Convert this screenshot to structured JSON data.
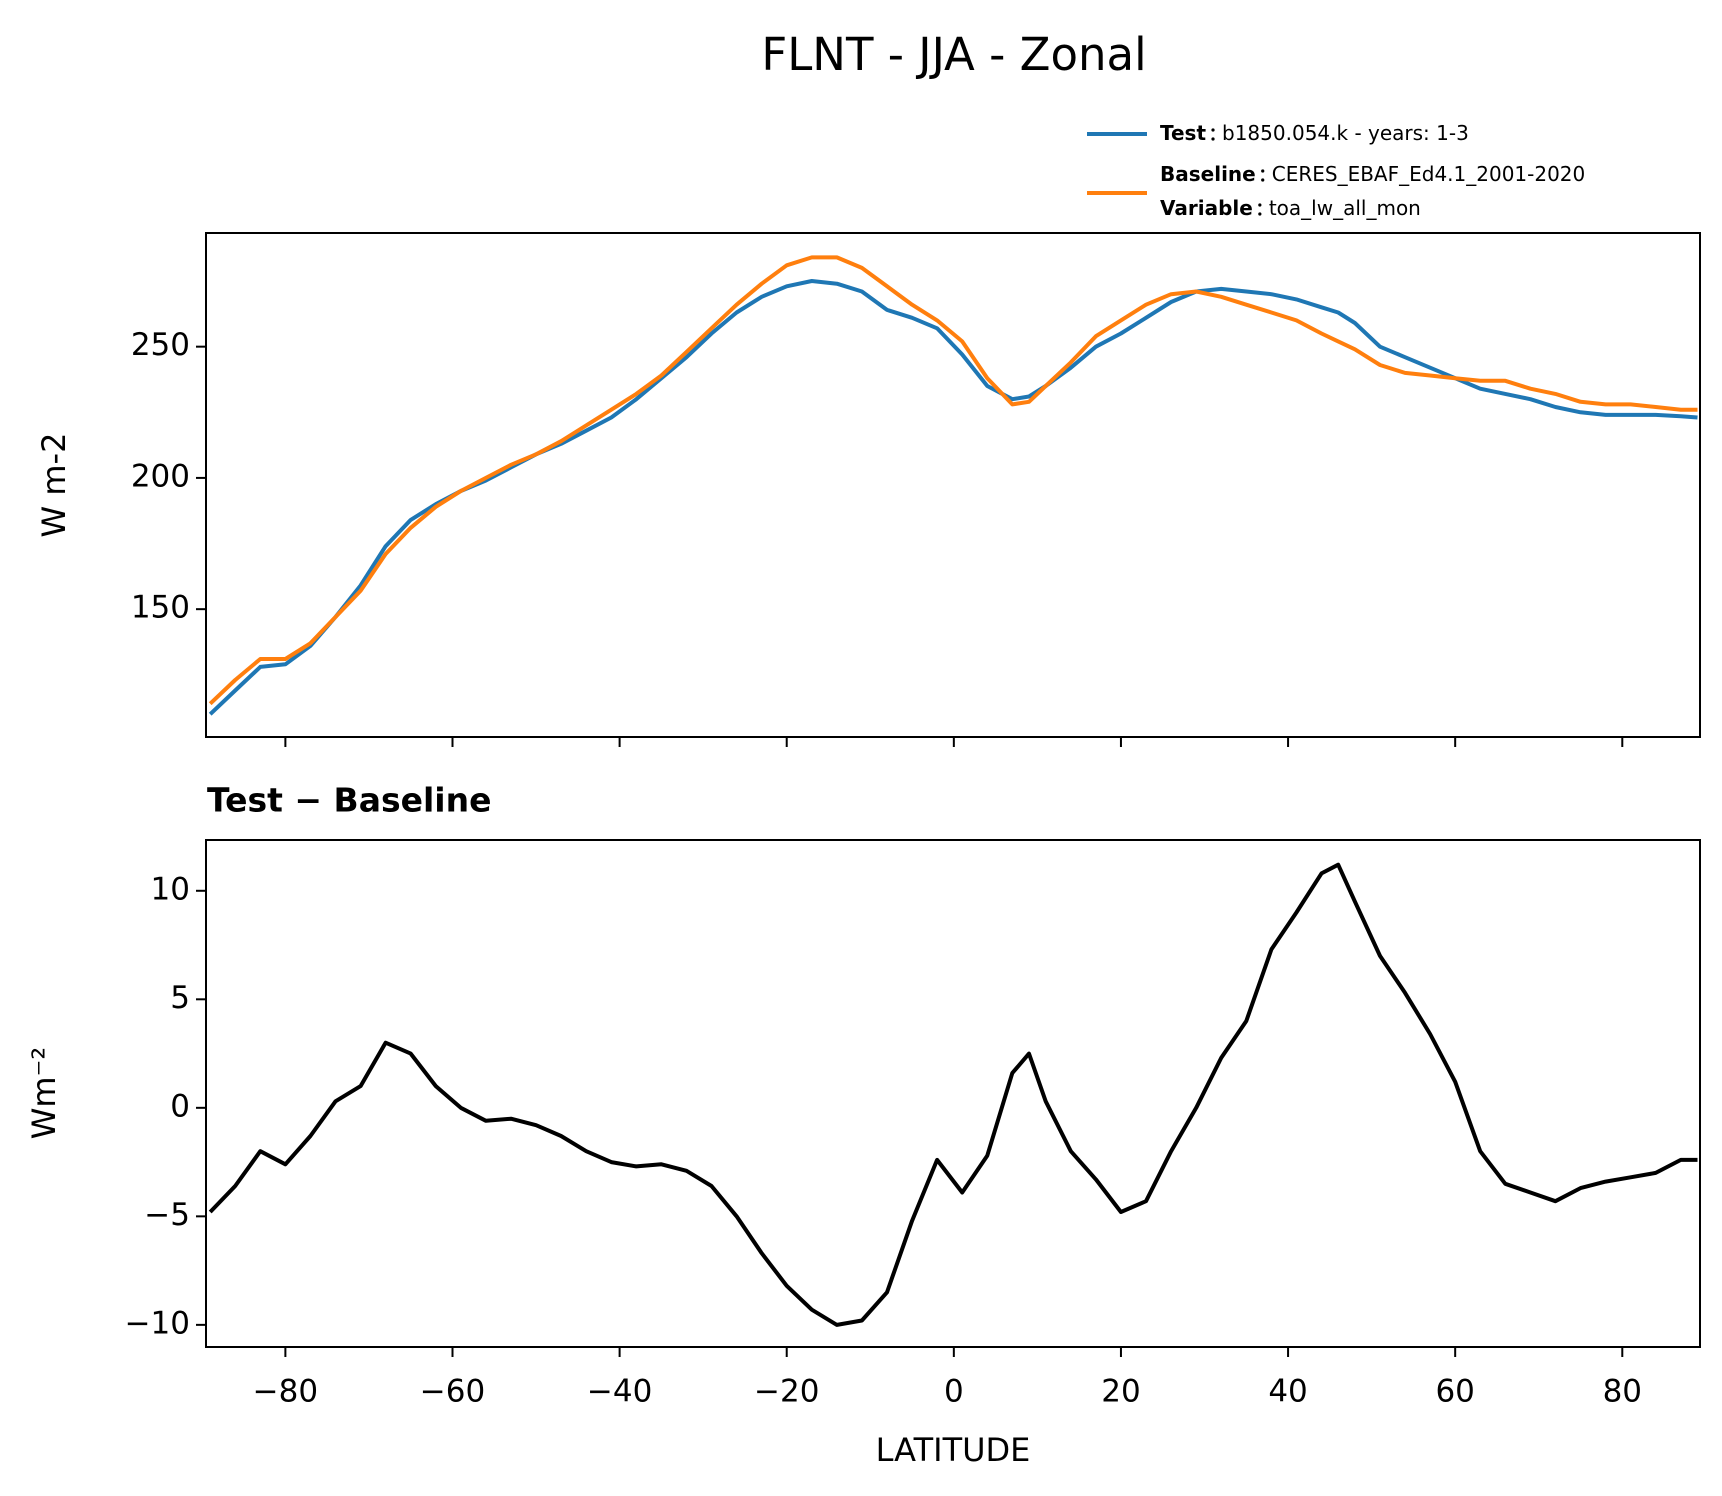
{
  "chart_data": [
    {
      "type": "line",
      "title": "FLNT - JJA - Zonal",
      "ylabel": "W m-2",
      "x": [
        -89,
        -86,
        -83,
        -80,
        -77,
        -74,
        -71,
        -68,
        -65,
        -62,
        -59,
        -56,
        -53,
        -50,
        -47,
        -44,
        -41,
        -38,
        -35,
        -32,
        -29,
        -26,
        -23,
        -20,
        -17,
        -14,
        -11,
        -8,
        -5,
        -2,
        1,
        4,
        7,
        9,
        11,
        14,
        17,
        20,
        23,
        26,
        29,
        32,
        35,
        38,
        41,
        44,
        46,
        48,
        51,
        54,
        57,
        60,
        63,
        66,
        69,
        72,
        75,
        78,
        81,
        84,
        87,
        89
      ],
      "series": [
        {
          "name": "Test",
          "description": "b1850.054.k - years: 1-3",
          "color": "#1f77b4",
          "values": [
            110,
            119,
            128,
            129,
            136,
            147,
            159,
            174,
            184,
            190,
            195,
            199,
            204,
            209,
            213,
            218,
            223,
            230,
            238,
            246,
            255,
            263,
            269,
            273,
            275,
            274,
            271,
            264,
            261,
            257,
            247,
            235,
            230,
            231,
            235,
            242,
            250,
            255,
            261,
            267,
            271,
            272,
            271,
            270,
            268,
            265,
            263,
            259,
            250,
            246,
            242,
            238,
            234,
            232,
            230,
            227,
            225,
            224,
            224,
            224,
            223.5,
            223
          ]
        },
        {
          "name": "Baseline",
          "description": "CERES_EBAF_Ed4.1_2001-2020",
          "color": "#ff7f0e",
          "values": [
            114,
            123,
            131,
            131,
            137,
            147,
            157,
            171,
            181,
            189,
            195,
            200,
            205,
            209,
            214,
            220,
            226,
            232,
            239,
            248,
            257,
            266,
            274,
            281,
            284,
            284,
            280,
            273,
            266,
            260,
            252,
            238,
            228,
            229,
            235,
            244,
            254,
            260,
            266,
            270,
            271,
            269,
            266,
            263,
            260,
            255,
            252,
            249,
            243,
            240,
            239,
            238,
            237,
            237,
            234,
            232,
            229,
            228,
            228,
            227,
            226,
            226
          ]
        }
      ],
      "legend_note": {
        "name": "Variable",
        "description": "toa_lw_all_mon"
      },
      "xlim": [
        -89.5,
        89.3
      ],
      "xticks": [
        -80,
        -60,
        -40,
        -20,
        0,
        20,
        40,
        60,
        80
      ],
      "ylim": [
        101.3,
        293.3
      ],
      "yticks": [
        150,
        200,
        250
      ]
    },
    {
      "type": "line",
      "title": "Test − Baseline",
      "xlabel": "LATITUDE",
      "ylabel": "Wm⁻²",
      "x": [
        -89,
        -86,
        -83,
        -80,
        -77,
        -74,
        -71,
        -68,
        -65,
        -62,
        -59,
        -56,
        -53,
        -50,
        -47,
        -44,
        -41,
        -38,
        -35,
        -32,
        -29,
        -26,
        -23,
        -20,
        -17,
        -14,
        -11,
        -8,
        -5,
        -2,
        1,
        4,
        7,
        9,
        11,
        14,
        17,
        20,
        23,
        26,
        29,
        32,
        35,
        38,
        41,
        44,
        46,
        48,
        51,
        54,
        57,
        60,
        63,
        66,
        69,
        72,
        75,
        78,
        81,
        84,
        87,
        89
      ],
      "series": [
        {
          "color": "#000000",
          "values": [
            -4.8,
            -3.6,
            -2.0,
            -2.6,
            -1.3,
            0.3,
            1.0,
            3.0,
            2.5,
            1.0,
            0.0,
            -0.6,
            -0.5,
            -0.8,
            -1.3,
            -2.0,
            -2.5,
            -2.7,
            -2.6,
            -2.9,
            -3.6,
            -5.0,
            -6.7,
            -8.2,
            -9.3,
            -10.0,
            -9.8,
            -8.5,
            -5.2,
            -2.4,
            -3.9,
            -2.2,
            1.6,
            2.5,
            0.3,
            -2.0,
            -3.3,
            -4.8,
            -4.3,
            -2.0,
            0.0,
            2.3,
            4.0,
            7.3,
            9.0,
            10.8,
            11.2,
            9.5,
            7.0,
            5.3,
            3.4,
            1.2,
            -2.0,
            -3.5,
            -3.9,
            -4.3,
            -3.7,
            -3.4,
            -3.2,
            -3.0,
            -2.4,
            -2.4
          ]
        }
      ],
      "xlim": [
        -89.5,
        89.3
      ],
      "xticks": [
        {
          "value": -80,
          "label": "−80"
        },
        {
          "value": -60,
          "label": "−60"
        },
        {
          "value": -40,
          "label": "−40"
        },
        {
          "value": -20,
          "label": "−20"
        },
        0,
        20,
        40,
        60,
        80
      ],
      "ylim": [
        -11.02,
        12.34
      ],
      "yticks": [
        {
          "value": -10,
          "label": "−10"
        },
        {
          "value": -5,
          "label": "−5"
        },
        0,
        5,
        10
      ]
    }
  ]
}
